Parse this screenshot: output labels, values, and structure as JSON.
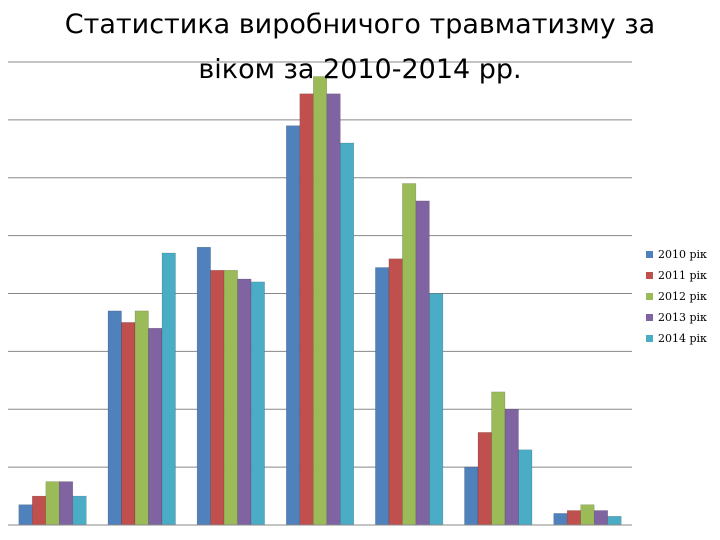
{
  "chart_data": {
    "type": "bar",
    "title_lines": [
      "Статистика виробничого травматизму за",
      "віком за 2010-2014 рр."
    ],
    "categories": [
      "",
      "",
      "",
      "",
      "",
      "",
      ""
    ],
    "series": [
      {
        "name": "2010 рік",
        "color": "#4f81bd",
        "values": [
          3.5,
          37,
          48,
          69,
          44.5,
          10,
          2
        ]
      },
      {
        "name": "2011 рік",
        "color": "#c0504d",
        "values": [
          5,
          35,
          44,
          74.5,
          46,
          16,
          2.5
        ]
      },
      {
        "name": "2012 рік",
        "color": "#9bbb59",
        "values": [
          7.5,
          37,
          44,
          77.5,
          59,
          23,
          3.5
        ]
      },
      {
        "name": "2013 рік",
        "color": "#8064a2",
        "values": [
          7.5,
          34,
          42.5,
          74.5,
          56,
          20,
          2.5
        ]
      },
      {
        "name": "2014 рік",
        "color": "#4bacc6",
        "values": [
          5,
          47,
          42,
          66,
          40,
          13,
          1.5
        ]
      }
    ],
    "ylim": [
      0,
      80
    ],
    "grid": true,
    "legend": "right"
  }
}
